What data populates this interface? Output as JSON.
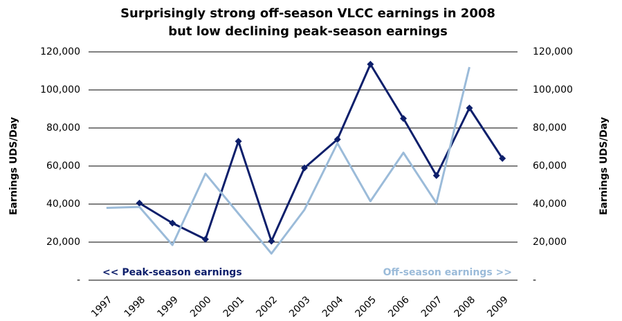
{
  "chart_data": {
    "type": "line",
    "title": [
      "Surprisingly strong off-season VLCC earnings in 2008",
      "but low declining peak-season earnings"
    ],
    "y_label": "Earnings UDS/Day",
    "y2_label": "Earnings UDS/Day",
    "categories": [
      "1997",
      "1998",
      "1999",
      "2000",
      "2001",
      "2002",
      "2003",
      "2004",
      "2005",
      "2006",
      "2007",
      "2008",
      "2009"
    ],
    "series": [
      {
        "name": "<< Peak-season earnings",
        "color": "#0d1f6b",
        "marker": "diamond",
        "axis": "y",
        "values": [
          null,
          40500,
          30000,
          21500,
          73000,
          20500,
          59000,
          74000,
          113500,
          85000,
          55000,
          90500,
          64000
        ]
      },
      {
        "name": "Off-season earnings >>",
        "color": "#9bbbd9",
        "axis": "y2",
        "values": [
          38000,
          38500,
          18500,
          56000,
          35000,
          14000,
          37000,
          72000,
          41500,
          67000,
          40500,
          112000,
          null
        ]
      }
    ],
    "ylim": [
      0,
      120000
    ],
    "yticks": [
      {
        "value": 0,
        "label": "-"
      },
      {
        "value": 20000,
        "label": "20,000"
      },
      {
        "value": 40000,
        "label": "40,000"
      },
      {
        "value": 60000,
        "label": "60,000"
      },
      {
        "value": 80000,
        "label": "80,000"
      },
      {
        "value": 100000,
        "label": "100,000"
      },
      {
        "value": 120000,
        "label": "120,000"
      }
    ],
    "y2lim": [
      0,
      120000
    ],
    "y2ticks": [
      {
        "value": 0,
        "label": "-"
      },
      {
        "value": 20000,
        "label": "20,000"
      },
      {
        "value": 40000,
        "label": "40,000"
      },
      {
        "value": 60000,
        "label": "60,000"
      },
      {
        "value": 80000,
        "label": "80,000"
      },
      {
        "value": 100000,
        "label": "100,000"
      },
      {
        "value": 120000,
        "label": "120,000"
      }
    ],
    "grid": true
  }
}
